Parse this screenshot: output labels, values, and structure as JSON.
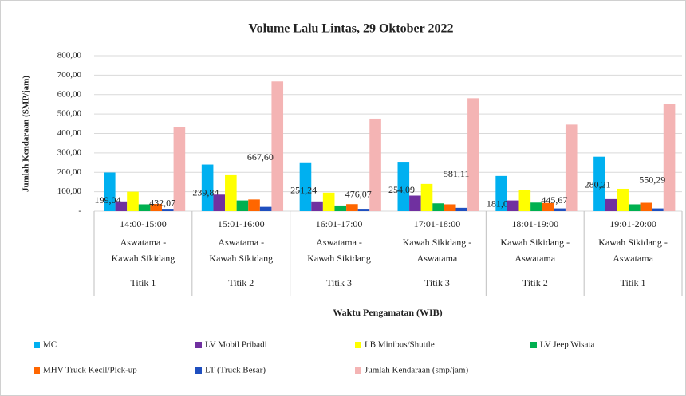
{
  "chart_data": {
    "type": "bar",
    "title": "Volume Lalu Lintas, 29 Oktober 2022",
    "y_label": "Jumlah Kendaraan (SMP/jam)",
    "x_label": "Waktu Pengamatan (WIB)",
    "categories": [
      "14:00-15:00",
      "15:01-16:00",
      "16:01-17:00",
      "17:01-18:00",
      "18:01-19:00",
      "19:01-20:00"
    ],
    "category_routes": [
      "Aswatama - Kawah Sikidang",
      "Aswatama - Kawah Sikidang",
      "Aswatama - Kawah Sikidang",
      "Kawah Sikidang - Aswatama",
      "Kawah Sikidang - Aswatama",
      "Kawah Sikidang - Aswatama"
    ],
    "category_points": [
      "Titik 1",
      "Titik 2",
      "Titik 3",
      "Titik 3",
      "Titik 2",
      "Titik 1"
    ],
    "ylim": [
      0,
      800
    ],
    "yticks": [
      {
        "value": 0,
        "label": "-"
      },
      {
        "value": 100,
        "label": "100,00"
      },
      {
        "value": 200,
        "label": "200,00"
      },
      {
        "value": 300,
        "label": "300,00"
      },
      {
        "value": 400,
        "label": "400,00"
      },
      {
        "value": 500,
        "label": "500,00"
      },
      {
        "value": 600,
        "label": "600,00"
      },
      {
        "value": 700,
        "label": "700,00"
      },
      {
        "value": 800,
        "label": "800,00"
      }
    ],
    "grid": true,
    "series": [
      {
        "name": "MC",
        "color": "#00b0f0",
        "values": [
          199.04,
          239.84,
          251.24,
          254.09,
          181.06,
          280.21
        ],
        "value_labels": [
          "199,04",
          "239,84",
          "251,24",
          "254,09",
          "181,06",
          "280,21"
        ]
      },
      {
        "name": "LV Mobil Pribadi",
        "color": "#7030a0",
        "values": [
          50,
          85,
          50,
          80,
          55,
          62
        ]
      },
      {
        "name": "LB Minibus/Shuttle",
        "color": "#ffff00",
        "values": [
          100,
          185,
          95,
          140,
          110,
          115
        ]
      },
      {
        "name": "LV Jeep Wisata",
        "color": "#00b050",
        "values": [
          35,
          55,
          29,
          40,
          44,
          35
        ]
      },
      {
        "name": "MHV Truck Kecil/Pick-up",
        "color": "#ff6600",
        "values": [
          37,
          60,
          36,
          35,
          42,
          43
        ]
      },
      {
        "name": "LT (Truck Besar)",
        "color": "#1f4fbf",
        "values": [
          12,
          22,
          12,
          17,
          14,
          14
        ]
      },
      {
        "name": "Jumlah Kendaraan (smp/jam)",
        "color": "#f4b4b4",
        "values": [
          432.07,
          667.6,
          476.07,
          581.11,
          445.67,
          550.29
        ],
        "value_labels": [
          "432,07",
          "667,60",
          "476,07",
          "581,11",
          "445,67",
          "550,29"
        ]
      }
    ]
  }
}
